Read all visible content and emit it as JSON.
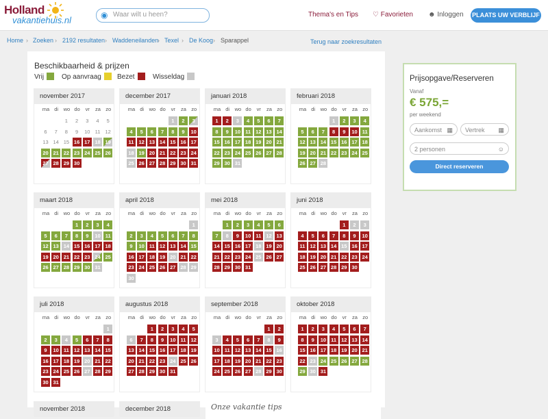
{
  "header": {
    "logo_top": "Holland",
    "logo_bottom": "vakantiehuis.nl",
    "search_placeholder": "Waar wilt u heen?",
    "nav": {
      "themas": "Thema's en Tips",
      "favorieten": "♡ Favorieten",
      "inloggen": "Inloggen"
    },
    "cta": "PLAATS UW VERBLIJF"
  },
  "breadcrumb": {
    "items": [
      "Home",
      "Zoeken",
      "2192 resultaten",
      "Waddeneilanden",
      "Texel",
      "De Koog",
      "Sparappel"
    ],
    "back": "Terug naar zoekresultaten"
  },
  "availability": {
    "title": "Beschikbaarheid & prijzen",
    "legend": {
      "vrij": "Vrij",
      "op_aanvraag": "Op aanvraag",
      "bezet": "Bezet",
      "wisseldag": "Wisseldag"
    },
    "colors": {
      "vrij": "#84a83e",
      "op_aanvraag": "#e6cf2c",
      "bezet": "#a31d1d",
      "wisseldag": "#c8c8c8"
    },
    "weekdays": [
      "ma",
      "di",
      "wo",
      "do",
      "vr",
      "za",
      "zo"
    ],
    "months": [
      {
        "name": "november 2017",
        "start": 2,
        "days": 30,
        "states": [
          "x",
          "x",
          "x",
          "x",
          "x",
          "x",
          "x",
          "x",
          "x",
          "x",
          "x",
          "x",
          "x",
          "x",
          "x",
          "b",
          "b",
          "w",
          "vw",
          "v",
          "v",
          "v",
          "v",
          "v",
          "v",
          "v",
          "bw",
          "b",
          "b",
          "b"
        ]
      },
      {
        "name": "december 2017",
        "start": 4,
        "days": 31,
        "states": [
          "w",
          "v",
          "vw",
          "v",
          "v",
          "v",
          "v",
          "v",
          "v",
          "b",
          "b",
          "b",
          "b",
          "b",
          "b",
          "b",
          "b",
          "w",
          "v",
          "b",
          "b",
          "b",
          "b",
          "b",
          "w",
          "b",
          "b",
          "b",
          "b",
          "b",
          "b"
        ]
      },
      {
        "name": "januari 2018",
        "start": 0,
        "days": 31,
        "states": [
          "b",
          "b",
          "w",
          "v",
          "v",
          "v",
          "v",
          "v",
          "v",
          "v",
          "v",
          "v",
          "v",
          "v",
          "v",
          "v",
          "v",
          "v",
          "v",
          "v",
          "v",
          "v",
          "v",
          "v",
          "v",
          "v",
          "v",
          "v",
          "v",
          "v",
          "w"
        ]
      },
      {
        "name": "februari 2018",
        "start": 3,
        "days": 28,
        "states": [
          "w",
          "v",
          "v",
          "v",
          "v",
          "v",
          "v",
          "b",
          "b",
          "b",
          "v",
          "v",
          "v",
          "v",
          "v",
          "v",
          "v",
          "v",
          "v",
          "v",
          "v",
          "v",
          "v",
          "v",
          "v",
          "v",
          "v",
          "w"
        ]
      },
      {
        "name": "maart 2018",
        "start": 3,
        "days": 31,
        "states": [
          "v",
          "v",
          "v",
          "v",
          "v",
          "v",
          "v",
          "v",
          "v",
          "w",
          "v",
          "v",
          "v",
          "w",
          "b",
          "b",
          "b",
          "b",
          "b",
          "b",
          "b",
          "b",
          "b",
          "wv",
          "v",
          "v",
          "v",
          "v",
          "v",
          "v",
          "w"
        ]
      },
      {
        "name": "april 2018",
        "start": 6,
        "days": 30,
        "states": [
          "w",
          "v",
          "v",
          "v",
          "v",
          "v",
          "v",
          "v",
          "v",
          "v",
          "b",
          "b",
          "b",
          "b",
          "v",
          "b",
          "b",
          "b",
          "b",
          "w",
          "b",
          "b",
          "b",
          "b",
          "b",
          "b",
          "b",
          "w",
          "w",
          "w"
        ]
      },
      {
        "name": "mei 2018",
        "start": 1,
        "days": 31,
        "states": [
          "v",
          "v",
          "v",
          "v",
          "v",
          "v",
          "v",
          "w",
          "b",
          "b",
          "b",
          "w",
          "b",
          "b",
          "b",
          "b",
          "b",
          "w",
          "b",
          "b",
          "b",
          "b",
          "b",
          "b",
          "w",
          "b",
          "b",
          "b",
          "b",
          "b",
          "b"
        ]
      },
      {
        "name": "juni 2018",
        "start": 4,
        "days": 30,
        "states": [
          "b",
          "w",
          "w",
          "b",
          "b",
          "b",
          "b",
          "b",
          "b",
          "b",
          "b",
          "b",
          "b",
          "b",
          "w",
          "b",
          "b",
          "b",
          "b",
          "b",
          "b",
          "b",
          "b",
          "b",
          "b",
          "b",
          "b",
          "b",
          "b",
          "b"
        ]
      },
      {
        "name": "juli 2018",
        "start": 6,
        "days": 31,
        "states": [
          "w",
          "v",
          "v",
          "w",
          "v",
          "b",
          "b",
          "b",
          "b",
          "b",
          "b",
          "b",
          "b",
          "b",
          "b",
          "b",
          "b",
          "b",
          "b",
          "w",
          "b",
          "b",
          "b",
          "b",
          "b",
          "b",
          "w",
          "b",
          "b",
          "b",
          "b"
        ]
      },
      {
        "name": "augustus 2018",
        "start": 2,
        "days": 31,
        "states": [
          "b",
          "b",
          "b",
          "b",
          "b",
          "w",
          "b",
          "b",
          "b",
          "b",
          "b",
          "b",
          "b",
          "b",
          "b",
          "b",
          "b",
          "b",
          "b",
          "b",
          "b",
          "b",
          "b",
          "w",
          "b",
          "b",
          "b",
          "b",
          "b",
          "b",
          "b"
        ]
      },
      {
        "name": "september 2018",
        "start": 5,
        "days": 30,
        "states": [
          "b",
          "b",
          "w",
          "b",
          "b",
          "b",
          "b",
          "w",
          "b",
          "b",
          "b",
          "b",
          "b",
          "b",
          "b",
          "w",
          "b",
          "b",
          "b",
          "b",
          "b",
          "b",
          "b",
          "b",
          "b",
          "b",
          "b",
          "w",
          "b",
          "b"
        ]
      },
      {
        "name": "oktober 2018",
        "start": 0,
        "days": 31,
        "states": [
          "b",
          "b",
          "b",
          "b",
          "b",
          "b",
          "b",
          "b",
          "b",
          "b",
          "b",
          "b",
          "b",
          "b",
          "b",
          "b",
          "b",
          "b",
          "b",
          "b",
          "b",
          "b",
          "w",
          "v",
          "v",
          "v",
          "v",
          "v",
          "v",
          "w",
          "b"
        ]
      }
    ],
    "next_months": [
      "november 2018",
      "december 2018"
    ]
  },
  "tips_title": "Onze vakantie tips",
  "booking": {
    "title": "Prijsopgave/Reserveren",
    "vanaf": "Vanaf",
    "price": "€ 575,=",
    "per": "per weekend",
    "aankomst": "Aankomst",
    "vertrek": "Vertrek",
    "personen": "2 personen",
    "button": "Direct reserveren"
  }
}
